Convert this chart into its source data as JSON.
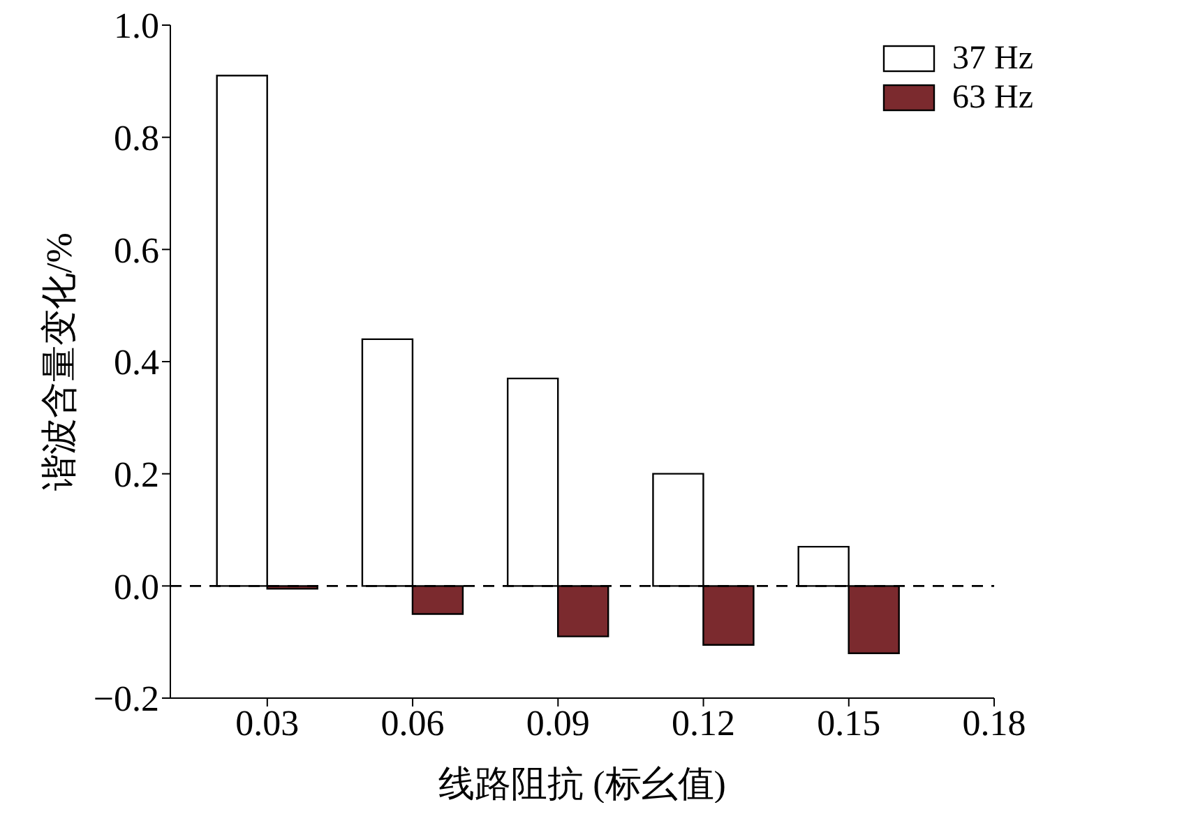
{
  "chart_data": {
    "type": "bar",
    "xlabel": "线路阻抗 (标幺值)",
    "ylabel": "谐波含量变化/%",
    "x": [
      0.03,
      0.06,
      0.09,
      0.12,
      0.15
    ],
    "series": [
      {
        "name": "37 Hz",
        "color": "#ffffff",
        "values": [
          0.91,
          0.44,
          0.37,
          0.2,
          0.07
        ]
      },
      {
        "name": "63 Hz",
        "color": "#7b2a2e",
        "values": [
          -0.005,
          -0.05,
          -0.09,
          -0.105,
          -0.12
        ]
      }
    ],
    "xlim": [
      0.01,
      0.18
    ],
    "xticks": [
      {
        "value": 0.03,
        "label": "0.03"
      },
      {
        "value": 0.06,
        "label": "0.06"
      },
      {
        "value": 0.09,
        "label": "0.09"
      },
      {
        "value": 0.12,
        "label": "0.12"
      },
      {
        "value": 0.15,
        "label": "0.15"
      },
      {
        "value": 0.18,
        "label": "0.18"
      }
    ],
    "ylim": [
      -0.2,
      1.0
    ],
    "yticks": [
      {
        "value": -0.2,
        "label": "−0.2"
      },
      {
        "value": 0,
        "label": "0.0"
      },
      {
        "value": 0.2,
        "label": "0.2"
      },
      {
        "value": 0.4,
        "label": "0.4"
      },
      {
        "value": 0.6,
        "label": "0.6"
      },
      {
        "value": 0.8,
        "label": "0.8"
      },
      {
        "value": 1.0,
        "label": "1.0"
      }
    ],
    "ref_lines": [
      {
        "axis": "y",
        "value": 0,
        "color": "#000000",
        "line_style": "dashed"
      }
    ],
    "grid": false,
    "legend": "top right"
  }
}
